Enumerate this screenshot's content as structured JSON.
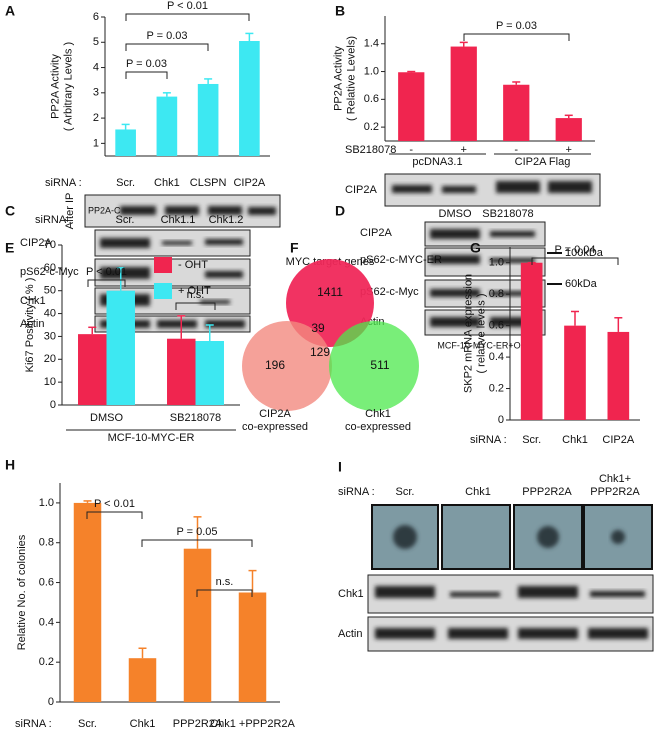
{
  "chart_data": [
    {
      "type": "bar",
      "panel": "A",
      "x_prefix": "siRNA :",
      "ylabel": [
        "PP2A Activity",
        "( Arbitrary Levels )"
      ],
      "categories": [
        "Scr.",
        "Chk1",
        "CLSPN",
        "CIP2A"
      ],
      "values": [
        1.55,
        2.85,
        3.35,
        5.05
      ],
      "errors": [
        0.2,
        0.15,
        0.2,
        0.3
      ],
      "color": "#3de8f2",
      "ylim": [
        0.5,
        6
      ],
      "yticks": [
        1,
        2,
        3,
        4,
        5,
        6
      ],
      "annotations": [
        "P = 0.03",
        "P = 0.03",
        "P < 0.01"
      ]
    },
    {
      "type": "bar",
      "panel": "B",
      "x_prefix": "SB218078",
      "ylabel": [
        "PP2A Activity",
        "( Relative Levels)"
      ],
      "categories": [
        "-",
        "+",
        "-",
        "+"
      ],
      "groups": [
        "pcDNA3.1",
        "CIP2A Flag"
      ],
      "values": [
        0.99,
        1.36,
        0.81,
        0.33
      ],
      "errors": [
        0.01,
        0.06,
        0.04,
        0.04
      ],
      "color": "#f0254f",
      "ylim": [
        0,
        1.8
      ],
      "yticks": [
        0.2,
        0.6,
        {
          "value": 1,
          "label": "1.0"
        },
        1.4
      ],
      "annotations": [
        "P = 0.03"
      ]
    },
    {
      "type": "bar",
      "panel": "E",
      "ylabel": [
        "Ki67 Positivity ( % )"
      ],
      "categories": [
        "DMSO",
        "SB218078"
      ],
      "groups": [
        "MCF-10-MYC-ER"
      ],
      "series": [
        {
          "name": "- OHT",
          "color": "#f0254f",
          "values": [
            31,
            29
          ],
          "errors": [
            3,
            10
          ]
        },
        {
          "name": "+ OHT",
          "color": "#3de8f2",
          "values": [
            50,
            28
          ],
          "errors": [
            10,
            7
          ]
        }
      ],
      "ylim": [
        0,
        70
      ],
      "yticks": [
        0,
        10,
        20,
        30,
        40,
        50,
        60,
        70
      ],
      "annotations": [
        "P < 0.01",
        "n.s."
      ]
    },
    {
      "type": "bar",
      "panel": "G",
      "x_prefix": "siRNA :",
      "ylabel": [
        "SKP2 mRNA expression",
        "( relative levels )"
      ],
      "categories": [
        "Scr.",
        "Chk1",
        "CIP2A"
      ],
      "values": [
        1.0,
        0.6,
        0.56
      ],
      "errors": [
        0,
        0.09,
        0.09
      ],
      "color": "#f0254f",
      "ylim": [
        0,
        1.1
      ],
      "yticks": [
        0,
        0.2,
        0.4,
        0.6,
        0.8,
        {
          "value": 1,
          "label": "1.0"
        }
      ],
      "annotations": [
        "P = 0.04"
      ]
    },
    {
      "type": "bar",
      "panel": "H",
      "x_prefix": "siRNA :",
      "ylabel": [
        "Relative No. of colonies"
      ],
      "categories": [
        "Scr.",
        "Chk1",
        "PPP2R2A",
        "Chk1 +PPP2R2A"
      ],
      "values": [
        1.0,
        0.22,
        0.77,
        0.55
      ],
      "errors": [
        0.01,
        0.05,
        0.16,
        0.11
      ],
      "color": "#f5822a",
      "ylim": [
        0,
        1.1
      ],
      "yticks": [
        0,
        0.2,
        0.4,
        0.6,
        0.8,
        {
          "value": 1,
          "label": "1.0"
        }
      ],
      "annotations": [
        "P < 0.01",
        "P = 0.05",
        "n.s."
      ]
    }
  ],
  "blots": {
    "A": {
      "side": "After IP",
      "rows": [
        "PP2A-C"
      ]
    },
    "B": {
      "rows": [
        "CIP2A"
      ]
    },
    "C": {
      "panel": "C",
      "prefix": "siRNA :",
      "lanes": [
        "Scr.",
        "Chk1.1",
        "Chk1.2"
      ],
      "rows": [
        "CIP2A",
        "pS62-c-Myc",
        "Chk1",
        "Actin"
      ]
    },
    "D": {
      "panel": "D",
      "lanes": [
        "DMSO",
        "SB218078"
      ],
      "rows": [
        "CIP2A",
        "pS62-c-MYC-ER",
        "pS62-c-Myc",
        "Actin"
      ],
      "markers": [
        "100kDa",
        "60kDa"
      ],
      "caption": "MCF-10-MYC-ER+OHT"
    },
    "I": {
      "panel": "I",
      "prefix": "siRNA :",
      "lanes": [
        "Scr.",
        "Chk1",
        "PPP2R2A",
        [
          "Chk1+",
          "PPP2R2A"
        ]
      ],
      "rows": [
        "Chk1",
        "Actin"
      ]
    }
  },
  "venn": {
    "panel": "F",
    "title": "MYC target genes",
    "counts": [
      "1411",
      "39",
      "196",
      "129",
      "511"
    ],
    "sets": [
      [
        "CIP2A",
        "co-expressed"
      ],
      [
        "Chk1",
        "co-expressed"
      ]
    ]
  }
}
